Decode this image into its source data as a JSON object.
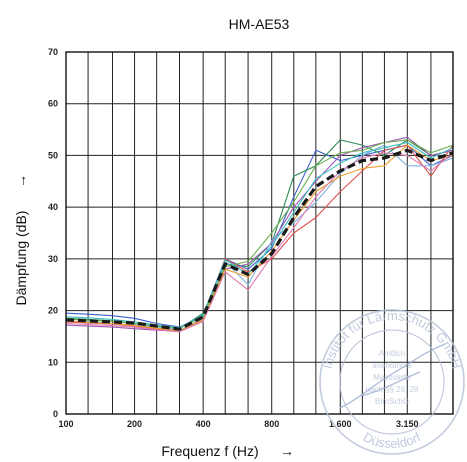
{
  "chart_data": {
    "type": "line",
    "title": "HM-AE53",
    "xlabel": "Frequenz f (Hz)",
    "ylabel": "Dämpfung (dB)",
    "ylabel_arrow": "→",
    "xlabel_arrow": "→",
    "ylim": [
      0,
      70
    ],
    "x_scale": "log",
    "grid": true,
    "legend": "none",
    "x": [
      100,
      125,
      160,
      200,
      250,
      315,
      400,
      500,
      630,
      800,
      1000,
      1250,
      1600,
      2000,
      2500,
      3150,
      4000,
      5000
    ],
    "x_tick_labels": [
      "100",
      "200",
      "400",
      "800",
      "1.600",
      "3.150"
    ],
    "x_tick_values": [
      100,
      200,
      400,
      800,
      1600,
      3150
    ],
    "y_ticks": [
      0,
      10,
      20,
      30,
      40,
      50,
      60,
      70
    ],
    "series": [
      {
        "color": "#1a1a1a",
        "style": "dashed",
        "values": [
          18.2,
          18.0,
          17.8,
          17.6,
          17.0,
          16.4,
          18.8,
          29.0,
          27.0,
          31.0,
          38.0,
          44.0,
          47.0,
          49.0,
          49.5,
          51.0,
          49.0,
          50.5
        ]
      },
      {
        "color": "#3a5fcd",
        "values": [
          19.5,
          19.3,
          19.0,
          18.5,
          17.5,
          16.8,
          19.0,
          30.0,
          28.0,
          32.0,
          42.0,
          51.0,
          49.0,
          50.0,
          51.0,
          52.0,
          48.0,
          50.0
        ]
      },
      {
        "color": "#2e8b57",
        "values": [
          18.5,
          18.3,
          18.0,
          17.5,
          17.0,
          16.5,
          19.5,
          29.0,
          28.5,
          33.0,
          46.0,
          48.0,
          53.0,
          52.0,
          50.0,
          53.0,
          50.0,
          51.0
        ]
      },
      {
        "color": "#e05050",
        "values": [
          17.8,
          17.6,
          17.4,
          17.0,
          16.5,
          16.0,
          18.5,
          30.0,
          27.5,
          30.0,
          35.0,
          38.0,
          43.0,
          47.0,
          51.0,
          52.0,
          46.0,
          52.0
        ]
      },
      {
        "color": "#9b59b6",
        "values": [
          17.2,
          17.0,
          16.8,
          16.5,
          16.2,
          16.0,
          18.0,
          28.0,
          29.0,
          33.0,
          40.0,
          45.0,
          50.0,
          51.5,
          52.5,
          53.5,
          50.0,
          51.0
        ]
      },
      {
        "color": "#7fb3e0",
        "values": [
          18.0,
          17.8,
          17.5,
          17.2,
          16.8,
          16.2,
          18.3,
          29.5,
          25.0,
          33.5,
          37.0,
          41.0,
          46.5,
          50.0,
          52.0,
          48.0,
          48.0,
          49.5
        ]
      },
      {
        "color": "#6ab04c",
        "values": [
          18.4,
          18.1,
          17.9,
          17.5,
          17.0,
          16.6,
          18.8,
          28.5,
          29.5,
          35.0,
          41.0,
          48.0,
          50.5,
          51.0,
          52.5,
          53.0,
          50.5,
          52.0
        ]
      },
      {
        "color": "#f0a030",
        "values": [
          18.0,
          17.7,
          17.5,
          17.1,
          16.6,
          16.1,
          18.2,
          28.0,
          26.5,
          31.5,
          37.5,
          43.0,
          46.0,
          47.5,
          48.0,
          52.0,
          49.0,
          50.0
        ]
      },
      {
        "color": "#e07ab0",
        "values": [
          17.5,
          17.3,
          17.1,
          16.8,
          16.3,
          15.9,
          17.9,
          27.5,
          24.0,
          30.5,
          36.0,
          42.0,
          47.0,
          49.5,
          50.5,
          50.0,
          47.0,
          50.5
        ]
      },
      {
        "color": "#40c0c0",
        "values": [
          18.8,
          18.6,
          18.3,
          17.8,
          17.2,
          16.7,
          19.2,
          29.8,
          27.0,
          32.5,
          39.0,
          45.5,
          48.5,
          50.5,
          51.5,
          52.5,
          49.5,
          51.5
        ]
      }
    ]
  },
  "stamp": {
    "outer_top": "Institut für Lärmschutz GmbH",
    "outer_bottom": "Düsseldorf",
    "line1": "Amtlich",
    "line2": "anerkannte",
    "line3": "Messstelle",
    "line4": "nach §§ 26, 28",
    "line5": "BImSchG"
  }
}
